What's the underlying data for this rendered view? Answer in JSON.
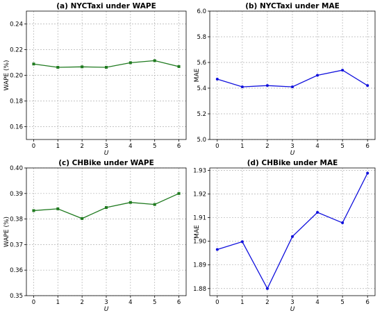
{
  "chart_data": [
    {
      "type": "line",
      "title": "(a) NYCTaxi under WAPE",
      "xlabel": "U",
      "ylabel": "WAPE (%)",
      "x": [
        0,
        1,
        2,
        3,
        4,
        5,
        6
      ],
      "xlim": [
        -0.3,
        6.3
      ],
      "ylim": [
        0.15,
        0.25
      ],
      "yticks": [
        0.16,
        0.18,
        0.2,
        0.22,
        0.24
      ],
      "ytick_labels": [
        "0.16",
        "0.18",
        "0.20",
        "0.22",
        "0.24"
      ],
      "grid": true,
      "series": [
        {
          "color": "#1f7a1f",
          "marker": "square",
          "values": [
            0.2088,
            0.2062,
            0.2066,
            0.2062,
            0.2098,
            0.2114,
            0.2068
          ]
        }
      ]
    },
    {
      "type": "line",
      "title": "(b) NYCTaxi under MAE",
      "xlabel": "U",
      "ylabel": "MAE",
      "x": [
        0,
        1,
        2,
        3,
        4,
        5,
        6
      ],
      "xlim": [
        -0.3,
        6.3
      ],
      "ylim": [
        5.0,
        6.0
      ],
      "yticks": [
        5.0,
        5.2,
        5.4,
        5.6,
        5.8,
        6.0
      ],
      "ytick_labels": [
        "5.0",
        "5.2",
        "5.4",
        "5.6",
        "5.8",
        "6.0"
      ],
      "grid": true,
      "series": [
        {
          "color": "#1010dd",
          "marker": "circle",
          "values": [
            5.47,
            5.41,
            5.42,
            5.41,
            5.5,
            5.54,
            5.42
          ]
        }
      ]
    },
    {
      "type": "line",
      "title": "(c) CHBike under WAPE",
      "xlabel": "U",
      "ylabel": "WAPE (%)",
      "x": [
        0,
        1,
        2,
        3,
        4,
        5,
        6
      ],
      "xlim": [
        -0.3,
        6.3
      ],
      "ylim": [
        0.35,
        0.4
      ],
      "yticks": [
        0.35,
        0.36,
        0.37,
        0.38,
        0.39,
        0.4
      ],
      "ytick_labels": [
        "0.35",
        "0.36",
        "0.37",
        "0.38",
        "0.39",
        "0.40"
      ],
      "grid": true,
      "series": [
        {
          "color": "#1f7a1f",
          "marker": "square",
          "values": [
            0.3833,
            0.384,
            0.3802,
            0.3845,
            0.3865,
            0.3857,
            0.39
          ]
        }
      ]
    },
    {
      "type": "line",
      "title": "(d) CHBike under MAE",
      "xlabel": "U",
      "ylabel": "MAE",
      "x": [
        0,
        1,
        2,
        3,
        4,
        5,
        6
      ],
      "xlim": [
        -0.3,
        6.3
      ],
      "ylim": [
        1.877,
        1.931
      ],
      "yticks": [
        1.88,
        1.89,
        1.9,
        1.91,
        1.92,
        1.93
      ],
      "ytick_labels": [
        "1.88",
        "1.89",
        "1.90",
        "1.91",
        "1.92",
        "1.93"
      ],
      "grid": true,
      "series": [
        {
          "color": "#1010dd",
          "marker": "circle",
          "values": [
            1.8965,
            1.8998,
            1.88,
            1.902,
            1.9122,
            1.9078,
            1.9288
          ]
        }
      ]
    }
  ]
}
